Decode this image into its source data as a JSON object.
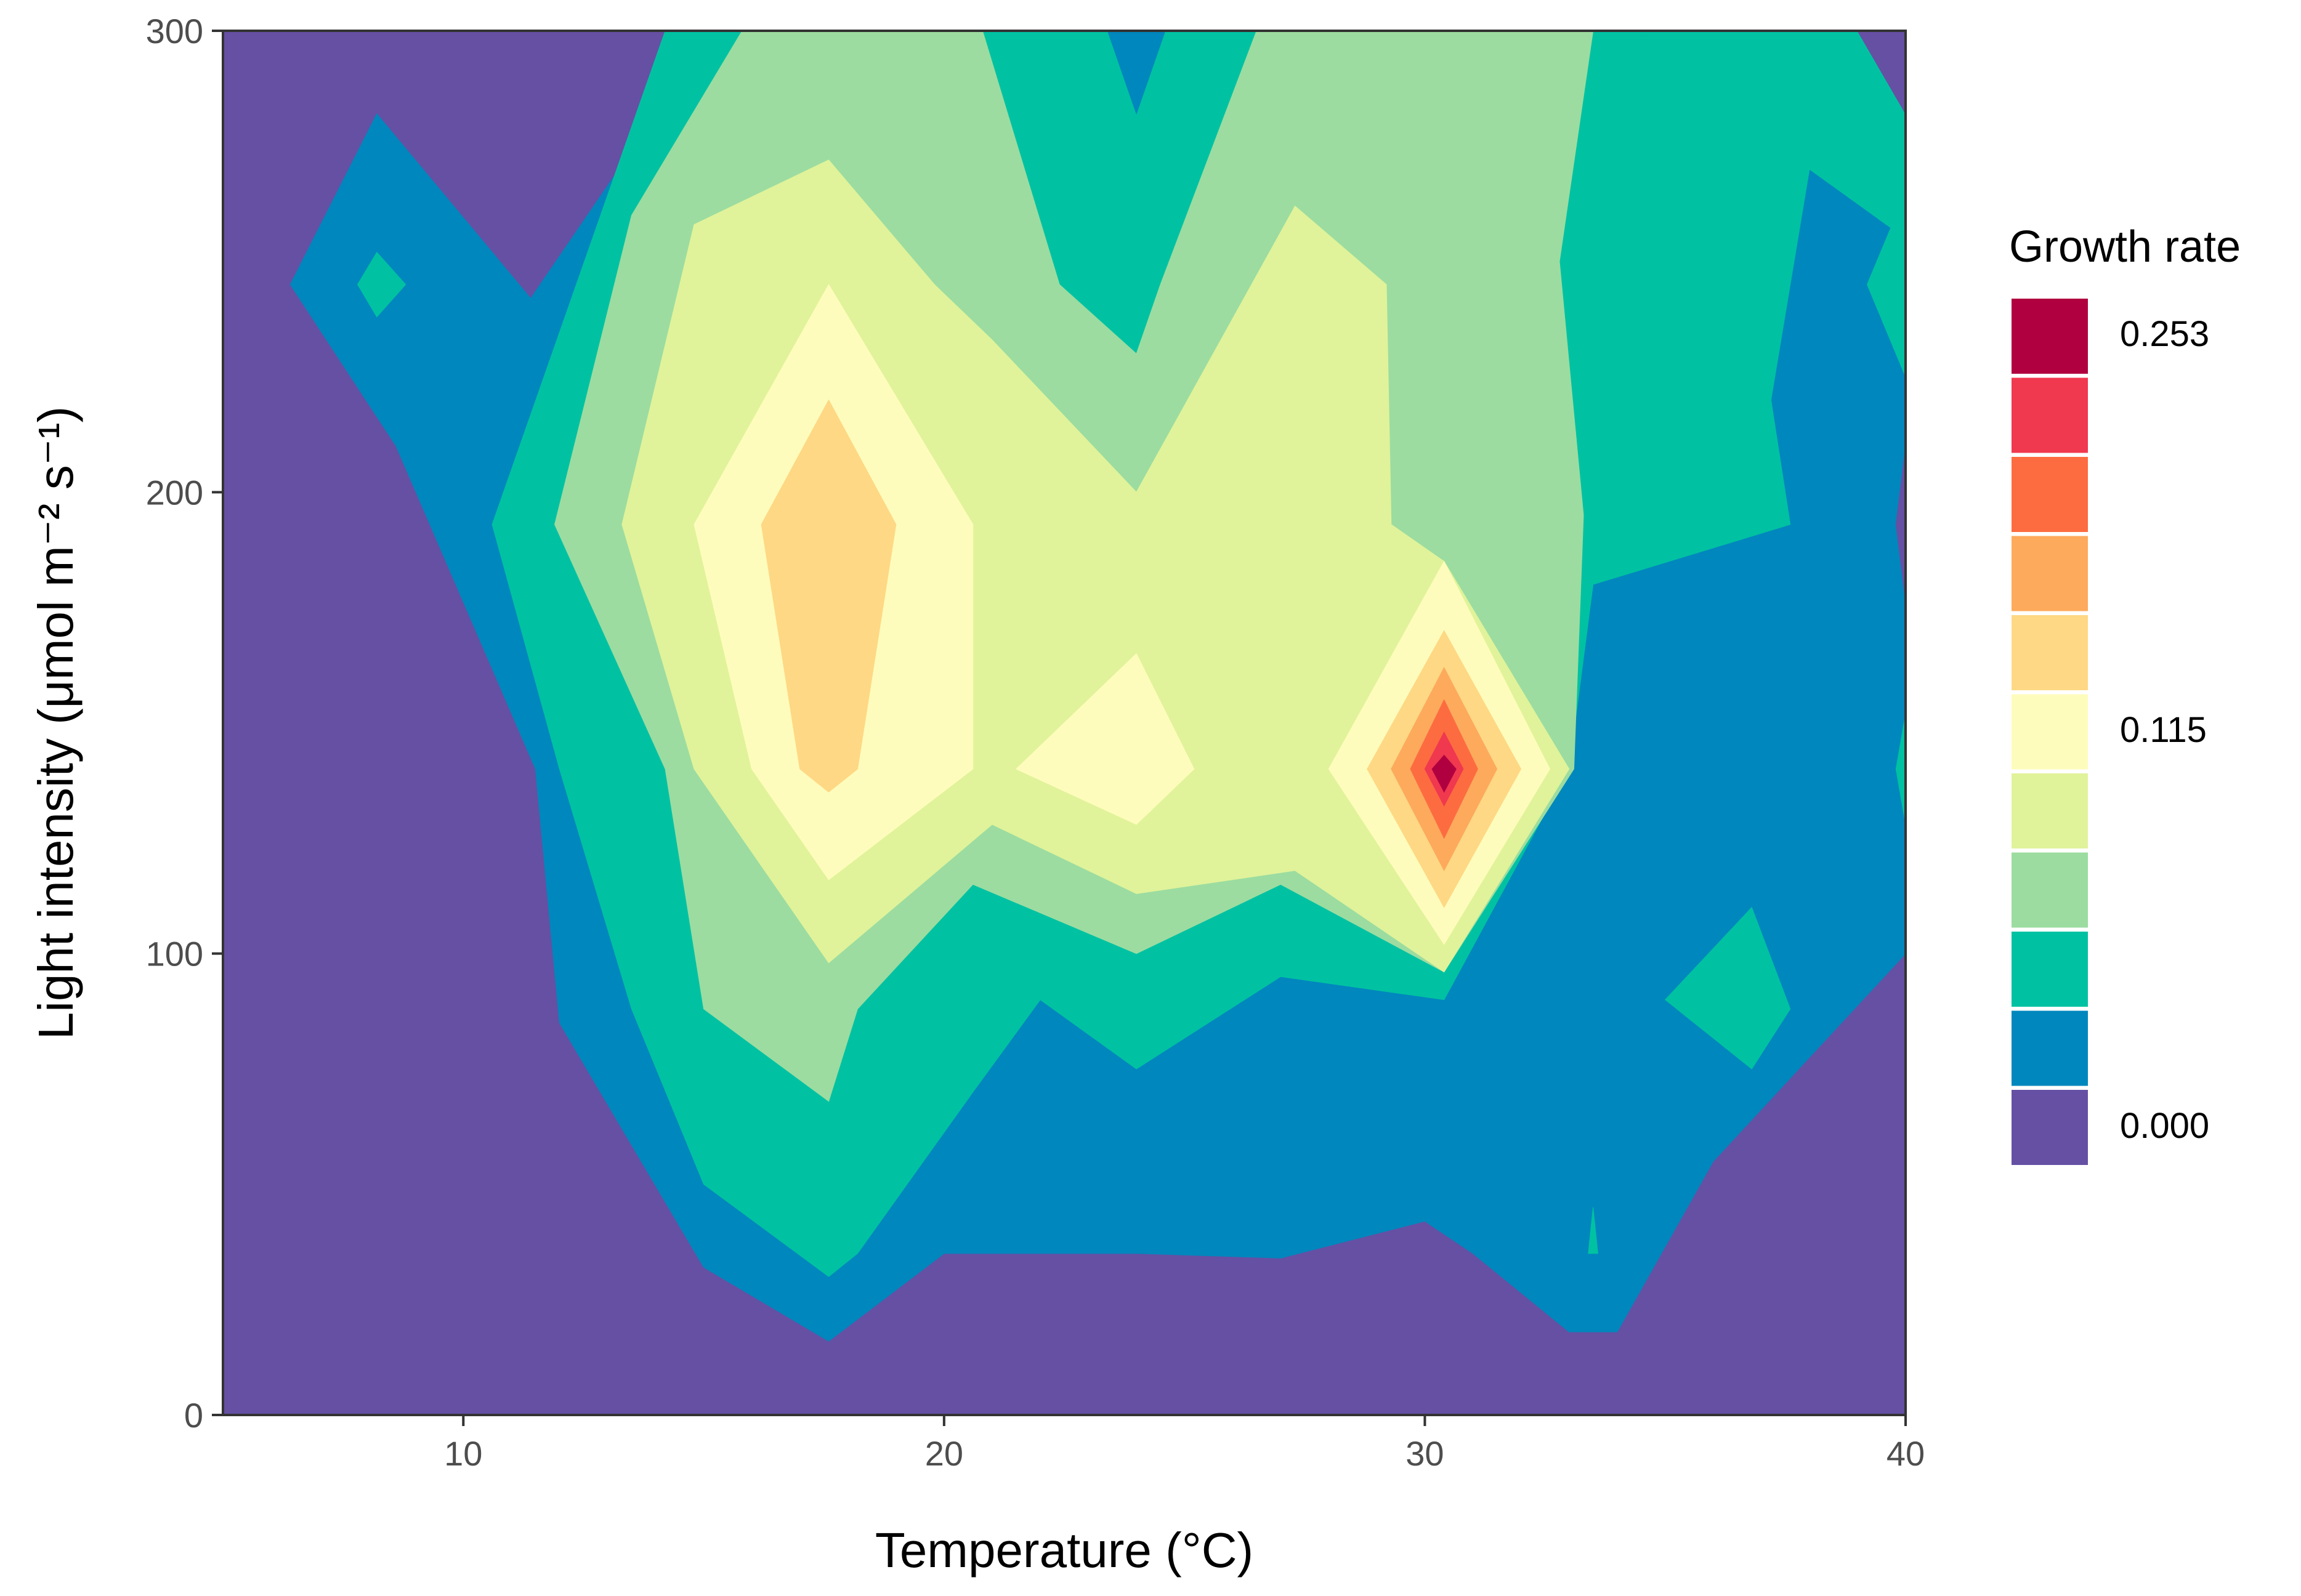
{
  "chart_data": {
    "type": "contour",
    "x_axis": {
      "label": "Temperature (°C)",
      "range": [
        5,
        40
      ],
      "ticks": [
        "10",
        "20",
        "30",
        "40"
      ],
      "tick_values": [
        10,
        20,
        30,
        40
      ]
    },
    "y_axis": {
      "label": "Light intensity (μmol m⁻² s⁻¹)",
      "range": [
        0,
        300
      ],
      "ticks": [
        "0",
        "100",
        "200",
        "300"
      ],
      "tick_values": [
        0,
        100,
        200,
        300
      ]
    },
    "legend": {
      "title": "Growth rate",
      "position": "right",
      "labels": [
        "0.253",
        "0.115",
        "0.000"
      ],
      "bins": [
        {
          "color": "#b0003f"
        },
        {
          "color": "#f0384f"
        },
        {
          "color": "#fd6c40"
        },
        {
          "color": "#fdaa5c"
        },
        {
          "color": "#fed884"
        },
        {
          "color": "#fefcbc"
        },
        {
          "color": "#e0f39a"
        },
        {
          "color": "#9cdca0"
        },
        {
          "color": "#00c2a2"
        },
        {
          "color": "#0087bd"
        },
        {
          "color": "#6550a4"
        }
      ]
    },
    "grid": false,
    "regions": [
      {
        "level": 1,
        "color": "#0087bd",
        "points": [
          [
            6.4,
            245
          ],
          [
            8.2,
            282
          ],
          [
            11.4,
            242
          ],
          [
            15.2,
            300
          ],
          [
            40,
            300
          ],
          [
            40,
            100
          ],
          [
            36,
            55
          ],
          [
            34,
            18
          ],
          [
            33,
            18
          ],
          [
            31,
            35
          ],
          [
            30,
            42
          ],
          [
            27,
            34
          ],
          [
            24,
            35
          ],
          [
            20,
            35
          ],
          [
            17.6,
            16
          ],
          [
            15,
            32
          ],
          [
            12,
            85
          ],
          [
            11.5,
            140
          ],
          [
            8.6,
            210
          ]
        ]
      },
      {
        "level": 2,
        "color": "#00c2a2",
        "points": [
          [
            10.6,
            193
          ],
          [
            14.2,
            300
          ],
          [
            40,
            300
          ],
          [
            40,
            255
          ],
          [
            38,
            270
          ],
          [
            37.2,
            220
          ],
          [
            37.6,
            193
          ],
          [
            33.5,
            180
          ],
          [
            33,
            140
          ],
          [
            30.4,
            90
          ],
          [
            27,
            95
          ],
          [
            24,
            75
          ],
          [
            22,
            90
          ],
          [
            20.6,
            70
          ],
          [
            18.2,
            35
          ],
          [
            17.6,
            30
          ],
          [
            15,
            50
          ],
          [
            13.5,
            88
          ],
          [
            12,
            140
          ]
        ]
      },
      {
        "level": 3,
        "color": "#9cdca0",
        "points": [
          [
            11.9,
            193
          ],
          [
            13.5,
            260
          ],
          [
            15.8,
            300
          ],
          [
            20.8,
            300
          ],
          [
            22.4,
            245
          ],
          [
            24,
            230
          ],
          [
            24.5,
            245
          ],
          [
            26.5,
            300
          ],
          [
            33.5,
            300
          ],
          [
            32.8,
            250
          ],
          [
            33.3,
            195
          ],
          [
            33.1,
            140
          ],
          [
            30.4,
            96
          ],
          [
            27,
            115
          ],
          [
            24,
            100
          ],
          [
            20.6,
            115
          ],
          [
            18.2,
            88
          ],
          [
            17.6,
            68
          ],
          [
            15,
            88
          ],
          [
            14.2,
            140
          ]
        ]
      },
      {
        "level": 4,
        "color": "#e0f39a",
        "points": [
          [
            13.3,
            193
          ],
          [
            14.8,
            258
          ],
          [
            17.6,
            272
          ],
          [
            19.8,
            245
          ],
          [
            21,
            233
          ],
          [
            24,
            200
          ],
          [
            27.3,
            262
          ],
          [
            29.2,
            245
          ],
          [
            29.3,
            193
          ],
          [
            30.4,
            185
          ],
          [
            33,
            140
          ],
          [
            30.4,
            96
          ],
          [
            27.3,
            118
          ],
          [
            24,
            113
          ],
          [
            21,
            128
          ],
          [
            17.6,
            98
          ],
          [
            14.8,
            140
          ]
        ]
      },
      {
        "level": 5,
        "color": "#fefcbc",
        "points": [
          [
            14.8,
            193
          ],
          [
            17.6,
            245
          ],
          [
            20.6,
            193
          ],
          [
            20.6,
            140
          ],
          [
            17.6,
            116
          ],
          [
            16,
            140
          ]
        ]
      },
      {
        "level": 5,
        "color": "#fefcbc",
        "points": [
          [
            21.5,
            140
          ],
          [
            24,
            165
          ],
          [
            25.2,
            140
          ],
          [
            24,
            128
          ]
        ]
      },
      {
        "level": 6,
        "color": "#fed884",
        "points": [
          [
            16.2,
            193
          ],
          [
            17.6,
            220
          ],
          [
            19,
            193
          ],
          [
            18.2,
            140
          ],
          [
            17.6,
            135
          ],
          [
            17,
            140
          ]
        ]
      },
      {
        "level": 5,
        "color": "#fefcbc",
        "points": [
          [
            30.4,
            185
          ],
          [
            32.6,
            140
          ],
          [
            30.4,
            102
          ],
          [
            28,
            140
          ]
        ]
      },
      {
        "level": 6,
        "color": "#fed884",
        "points": [
          [
            30.4,
            170
          ],
          [
            32,
            140
          ],
          [
            30.4,
            110
          ],
          [
            28.8,
            140
          ]
        ]
      },
      {
        "level": 7,
        "color": "#fdaa5c",
        "points": [
          [
            30.4,
            162
          ],
          [
            31.5,
            140
          ],
          [
            30.4,
            118
          ],
          [
            29.3,
            140
          ]
        ]
      },
      {
        "level": 8,
        "color": "#fd6c40",
        "points": [
          [
            30.4,
            155
          ],
          [
            31.1,
            140
          ],
          [
            30.4,
            125
          ],
          [
            29.7,
            140
          ]
        ]
      },
      {
        "level": 9,
        "color": "#f0384f",
        "points": [
          [
            30.4,
            148
          ],
          [
            30.8,
            140
          ],
          [
            30.4,
            132
          ],
          [
            30,
            140
          ]
        ]
      },
      {
        "level": 10,
        "color": "#b0003f",
        "points": [
          [
            30.4,
            143
          ],
          [
            30.65,
            140
          ],
          [
            30.4,
            135
          ],
          [
            30.15,
            140
          ]
        ]
      },
      {
        "level": 0,
        "color": "#6550a4",
        "points": [
          [
            39,
            300
          ],
          [
            40,
            300
          ],
          [
            40,
            282
          ]
        ]
      },
      {
        "level": 0,
        "color": "#6550a4",
        "points": [
          [
            40,
            210
          ],
          [
            39.8,
            193
          ],
          [
            40,
            176
          ]
        ]
      },
      {
        "level": 2,
        "color": "#00c2a2",
        "points": [
          [
            34.5,
            300
          ],
          [
            37,
            300
          ],
          [
            36.5,
            282
          ]
        ]
      },
      {
        "level": 2,
        "color": "#00c2a2",
        "points": [
          [
            39.2,
            245
          ],
          [
            40,
            265
          ],
          [
            40,
            225
          ]
        ]
      },
      {
        "level": 2,
        "color": "#00c2a2",
        "points": [
          [
            39.8,
            140
          ],
          [
            40,
            152
          ],
          [
            40,
            128
          ]
        ]
      },
      {
        "level": 2,
        "color": "#00c2a2",
        "points": [
          [
            35,
            90
          ],
          [
            36.8,
            110
          ],
          [
            37.6,
            88
          ],
          [
            36.8,
            75
          ]
        ]
      },
      {
        "level": 2,
        "color": "#00c2a2",
        "points": [
          [
            7.8,
            245
          ],
          [
            8.2,
            252
          ],
          [
            8.8,
            245
          ],
          [
            8.2,
            238
          ]
        ]
      },
      {
        "level": 1,
        "color": "#0087bd",
        "points": [
          [
            23.4,
            300
          ],
          [
            24,
            282
          ],
          [
            24.6,
            300
          ]
        ]
      },
      {
        "level": 2,
        "color": "#00c2a2",
        "points": [
          [
            33.4,
            35
          ],
          [
            33.5,
            45
          ],
          [
            33.6,
            35
          ]
        ]
      }
    ]
  }
}
